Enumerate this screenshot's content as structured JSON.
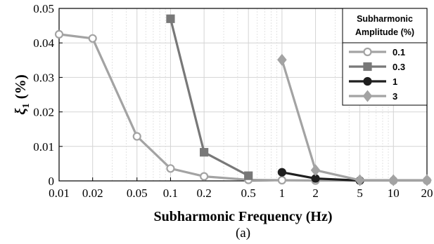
{
  "chart_data": {
    "type": "line",
    "xscale": "log",
    "x_ticks": [
      0.01,
      0.02,
      0.05,
      0.1,
      0.2,
      0.5,
      1,
      2,
      5,
      10,
      20
    ],
    "x_tick_labels": [
      "0.01",
      "0.02",
      "0.05",
      "0.1",
      "0.2",
      "0.5",
      "1",
      "2",
      "5",
      "10",
      "20"
    ],
    "xlim": [
      0.01,
      20
    ],
    "y_ticks": [
      0,
      0.01,
      0.02,
      0.03,
      0.04,
      0.05
    ],
    "y_tick_labels": [
      "0",
      "0.01",
      "0.02",
      "0.03",
      "0.04",
      "0.05"
    ],
    "ylim": [
      0,
      0.05
    ],
    "xlabel": "Subharmonic Frequency (Hz)",
    "ylabel_symbol": "ξ",
    "ylabel_subscript": "1",
    "ylabel_unit": "(%)",
    "caption": "(a)",
    "grid": true,
    "legend": {
      "title_line1": "Subharmonic",
      "title_line2": "Amplitude (%)",
      "position": "top-right"
    },
    "series": [
      {
        "name": "0.1",
        "color": "#a3a3a3",
        "marker": "circle",
        "marker_fill": "#ffffff",
        "x": [
          0.01,
          0.02,
          0.05,
          0.1,
          0.2,
          0.5,
          1,
          2,
          5,
          10,
          20
        ],
        "y": [
          0.0425,
          0.0413,
          0.0129,
          0.0036,
          0.0013,
          0.0003,
          0.0002,
          0.0001,
          0.0001,
          0.0001,
          0.0001
        ]
      },
      {
        "name": "0.3",
        "color": "#787878",
        "marker": "square",
        "marker_fill": "#787878",
        "x": [
          0.1,
          0.2,
          0.5
        ],
        "y": [
          0.047,
          0.0083,
          0.0015
        ]
      },
      {
        "name": "1",
        "color": "#1f1f1f",
        "marker": "circle",
        "marker_fill": "#1f1f1f",
        "x": [
          1,
          2,
          5
        ],
        "y": [
          0.0025,
          0.0007,
          0.0001
        ]
      },
      {
        "name": "3",
        "color": "#a3a3a3",
        "marker": "diamond",
        "marker_fill": "#a3a3a3",
        "x": [
          1,
          2,
          5,
          10,
          20
        ],
        "y": [
          0.0351,
          0.0031,
          0.0002,
          0.0002,
          0.0002
        ]
      }
    ]
  }
}
